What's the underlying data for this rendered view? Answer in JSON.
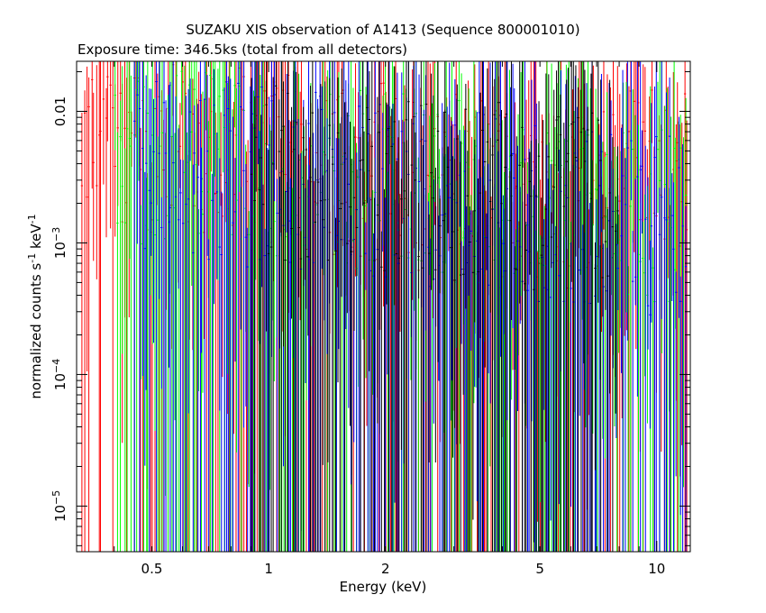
{
  "chart_data": {
    "type": "scatter",
    "title": "SUZAKU XIS observation of A1413 (Sequence 800001010)",
    "subtitle": "Exposure time: 346.5ks (total from all detectors)",
    "xlabel": "Energy (keV)",
    "ylabel_parts": [
      "normalized counts s",
      "-1",
      " keV",
      "-1"
    ],
    "x_scale": "log",
    "y_scale": "log",
    "xlim": [
      0.32,
      12.2
    ],
    "ylim": [
      4.5e-06,
      0.024
    ],
    "x_ticks": [
      {
        "value": 0.5,
        "label": "0.5"
      },
      {
        "value": 1,
        "label": "1"
      },
      {
        "value": 2,
        "label": "2"
      },
      {
        "value": 5,
        "label": "5"
      },
      {
        "value": 10,
        "label": "10"
      }
    ],
    "y_ticks": [
      {
        "value": 0.01,
        "base": "0.01",
        "exp": ""
      },
      {
        "value": 0.001,
        "base": "10",
        "exp": "−3"
      },
      {
        "value": 0.0001,
        "base": "10",
        "exp": "−4"
      },
      {
        "value": 1e-05,
        "base": "10",
        "exp": "−5"
      }
    ],
    "series": [
      {
        "color": "#ff0000",
        "energy_range": [
          0.33,
          12.1
        ],
        "points": 260,
        "level": 0.0042
      },
      {
        "color": "#00ff00",
        "energy_range": [
          0.4,
          12.0
        ],
        "points": 240,
        "level": 0.0036
      },
      {
        "color": "#0000ff",
        "energy_range": [
          0.45,
          12.0
        ],
        "points": 230,
        "level": 0.0031
      },
      {
        "color": "#000000",
        "energy_range": [
          0.9,
          8.0
        ],
        "points": 150,
        "level": 0.0038
      }
    ]
  }
}
